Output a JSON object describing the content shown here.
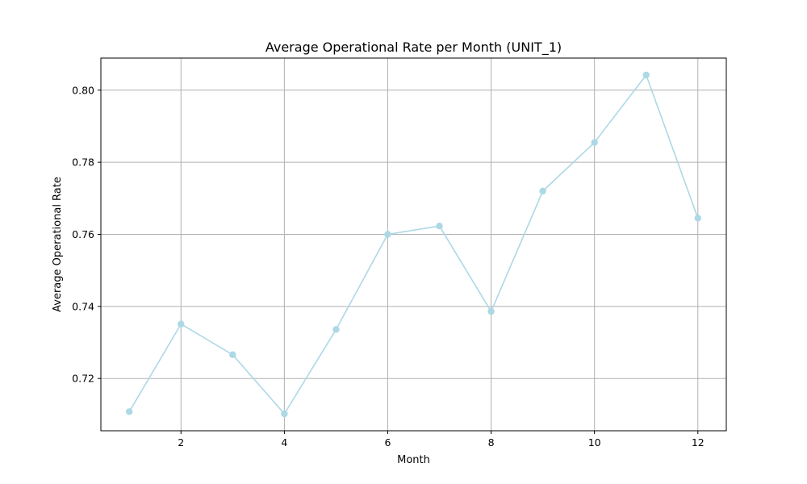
{
  "chart_data": {
    "type": "line",
    "title": "Average Operational Rate per Month (UNIT_1)",
    "xlabel": "Month",
    "ylabel": "Average Operational Rate",
    "x": [
      1,
      2,
      3,
      4,
      5,
      6,
      7,
      8,
      9,
      10,
      11,
      12
    ],
    "series": [
      {
        "values": [
          0.7108,
          0.7351,
          0.7266,
          0.7102,
          0.7336,
          0.76,
          0.7623,
          0.7386,
          0.772,
          0.7855,
          0.8042,
          0.7645
        ],
        "color": "#add8e6",
        "marker": "circle"
      }
    ],
    "xlim": [
      0.45,
      12.55
    ],
    "ylim": [
      0.7055,
      0.8089
    ],
    "x_ticks": [
      2,
      4,
      6,
      8,
      10,
      12
    ],
    "x_tick_labels": [
      "2",
      "4",
      "6",
      "8",
      "10",
      "12"
    ],
    "y_ticks": [
      0.72,
      0.74,
      0.76,
      0.78,
      0.8
    ],
    "y_tick_labels": [
      "0.72",
      "0.74",
      "0.76",
      "0.78",
      "0.80"
    ],
    "grid": true,
    "legend": "none"
  }
}
